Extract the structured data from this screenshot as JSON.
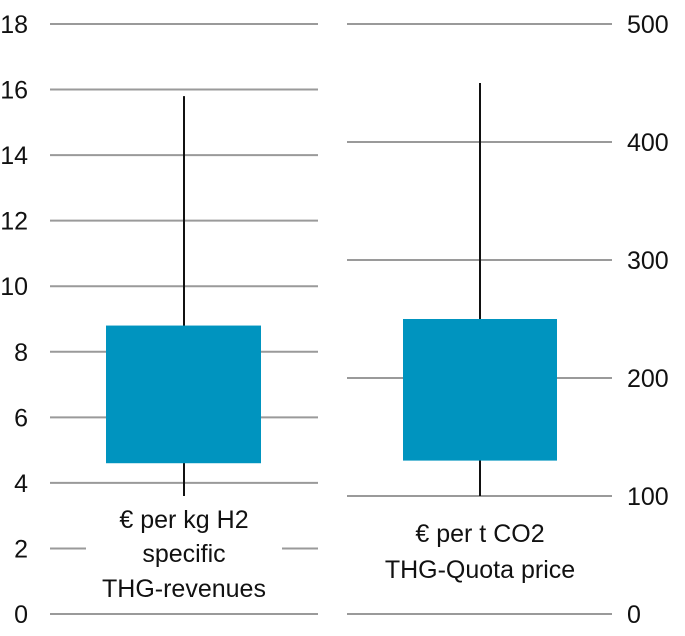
{
  "chart_data": [
    {
      "type": "box",
      "ylabel": "",
      "ylim": [
        0,
        18
      ],
      "yticks": [
        0,
        2,
        4,
        6,
        8,
        10,
        12,
        14,
        16,
        18
      ],
      "axis_side": "left",
      "grid": true,
      "category_label": [
        "€ per kg H2",
        "specific",
        "THG-revenues"
      ],
      "whisker_low": 3.6,
      "box_low": 4.6,
      "box_high": 8.8,
      "whisker_high": 15.8
    },
    {
      "type": "box",
      "ylabel": "",
      "ylim": [
        0,
        500
      ],
      "yticks": [
        0,
        100,
        200,
        300,
        400,
        500
      ],
      "axis_side": "right",
      "grid": true,
      "category_label": [
        "€ per t CO2",
        "THG-Quota price"
      ],
      "whisker_low": 100,
      "box_low": 130,
      "box_high": 250,
      "whisker_high": 450
    }
  ],
  "colors": {
    "box": "#0094BF",
    "grid": "#9a9a9a",
    "whisker": "#111111"
  }
}
